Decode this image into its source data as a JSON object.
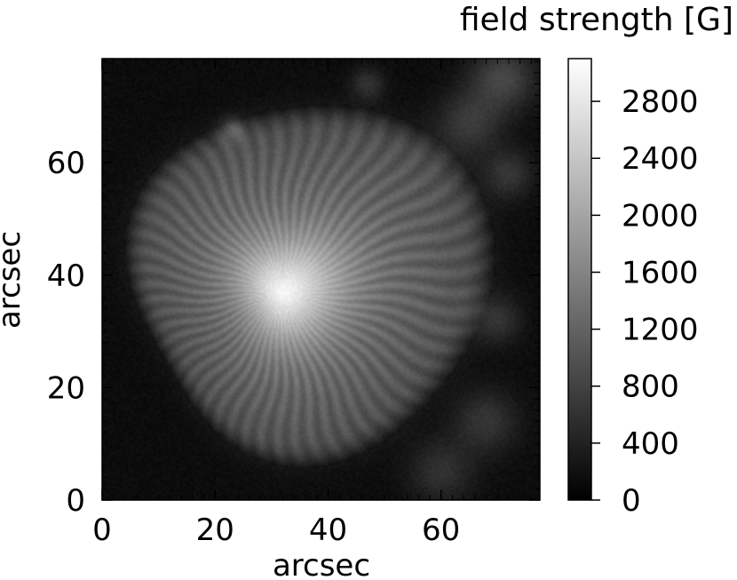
{
  "chart_data": {
    "type": "heatmap",
    "colormap": "grayscale",
    "colorbar_label": "field strength [G]",
    "xlabel": "arcsec",
    "ylabel": "arcsec",
    "xlim": [
      0,
      77.5
    ],
    "ylim": [
      0,
      78.5
    ],
    "xticks": [
      "0",
      "20",
      "40",
      "60"
    ],
    "yticks": [
      "0",
      "20",
      "40",
      "60"
    ],
    "colorbar_range": [
      0,
      3100
    ],
    "colorbar_ticks": [
      "0",
      "400",
      "800",
      "1200",
      "1600",
      "2000",
      "2400",
      "2800"
    ],
    "features": {
      "umbra_center": [
        32,
        37
      ],
      "peak_field": 3000,
      "penumbra_outer_radius": 32,
      "penumbra_field": 1200,
      "background_field": 150,
      "patches": [
        {
          "x": 71,
          "y": 75,
          "r": 4,
          "field": 700
        },
        {
          "x": 65,
          "y": 67,
          "r": 4,
          "field": 550
        },
        {
          "x": 72,
          "y": 58,
          "r": 3,
          "field": 500
        },
        {
          "x": 70,
          "y": 32,
          "r": 3,
          "field": 450
        },
        {
          "x": 68,
          "y": 14,
          "r": 4,
          "field": 500
        },
        {
          "x": 60,
          "y": 5,
          "r": 4,
          "field": 450
        },
        {
          "x": 23,
          "y": 66,
          "r": 1.5,
          "field": 600
        },
        {
          "x": 47,
          "y": 74,
          "r": 2,
          "field": 450
        }
      ]
    }
  }
}
